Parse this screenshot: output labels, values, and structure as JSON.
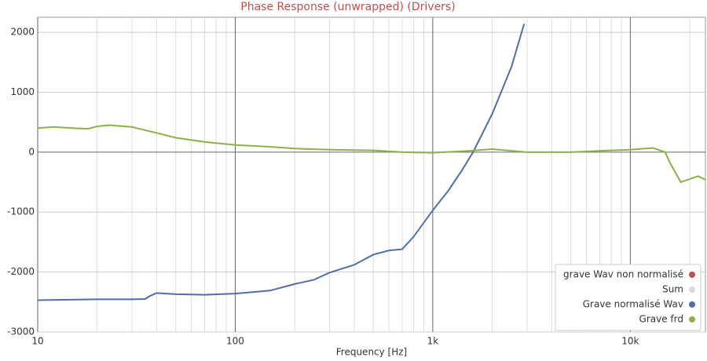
{
  "chart_data": {
    "type": "line",
    "title": "Phase Response (unwrapped) (Drivers)",
    "x_label": "Frequency [Hz]",
    "xscale": "log",
    "xlim": [
      10,
      24000
    ],
    "xticks": [
      10,
      100,
      {
        "value": 1000,
        "label": "1k"
      },
      {
        "value": 10000,
        "label": "10k"
      }
    ],
    "ylim": [
      -3000,
      2250
    ],
    "yticks": [
      -3000,
      -2000,
      -1000,
      0,
      1000,
      2000
    ],
    "grid": true,
    "legend": "lower right",
    "series": [
      {
        "name": "grave Wav non normalisé",
        "color": "#c0504d",
        "x": [],
        "values": []
      },
      {
        "name": "Sum",
        "color": "#d9d9d9",
        "x": [],
        "values": []
      },
      {
        "name": "Grave normalisé Wav",
        "color": "#4f6fa8",
        "x": [
          10,
          20,
          30,
          35,
          37,
          40,
          50,
          70,
          100,
          150,
          200,
          250,
          300,
          400,
          500,
          600,
          700,
          800,
          1000,
          1200,
          1400,
          1600,
          2000,
          2500,
          2900
        ],
        "values": [
          -2470,
          -2455,
          -2455,
          -2450,
          -2400,
          -2350,
          -2370,
          -2380,
          -2360,
          -2310,
          -2200,
          -2130,
          -2010,
          -1880,
          -1710,
          -1640,
          -1620,
          -1410,
          -970,
          -640,
          -310,
          0,
          640,
          1420,
          2140
        ]
      },
      {
        "name": "Grave frd",
        "color": "#8db04a",
        "x": [
          10,
          12,
          15,
          18,
          20,
          23,
          30,
          40,
          50,
          70,
          100,
          150,
          200,
          300,
          500,
          700,
          1000,
          1500,
          2000,
          3000,
          5000,
          8000,
          10000,
          13000,
          15000,
          16000,
          18000,
          20000,
          22000,
          24000
        ],
        "values": [
          400,
          420,
          400,
          390,
          430,
          450,
          420,
          320,
          240,
          170,
          120,
          90,
          60,
          40,
          30,
          0,
          -10,
          20,
          50,
          0,
          0,
          30,
          40,
          70,
          0,
          -200,
          -500,
          -450,
          -400,
          -460
        ]
      }
    ]
  }
}
